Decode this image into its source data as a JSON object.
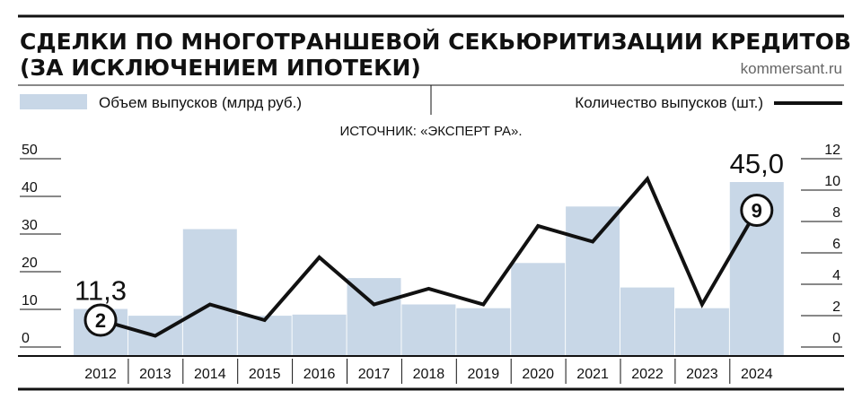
{
  "header": {
    "title_line1": "СДЕЛКИ ПО МНОГОТРАНШЕВОЙ СЕКЬЮРИТИЗАЦИИ КРЕДИТОВ",
    "title_line2": "(ЗА ИСКЛЮЧЕНИЕМ ИПОТЕКИ)",
    "site": "kommersant.ru"
  },
  "source": "ИСТОЧНИК: «ЭКСПЕРТ РА».",
  "colors": {
    "bar": "#c8d7e7",
    "line": "#111111",
    "rule": "#111111"
  },
  "chart_data": {
    "type": "bar",
    "categories": [
      "2012",
      "2013",
      "2014",
      "2015",
      "2016",
      "2017",
      "2018",
      "2019",
      "2020",
      "2021",
      "2022",
      "2023",
      "2024"
    ],
    "series": [
      {
        "name": "Объем выпусков (млрд руб.)",
        "type": "bar",
        "axis": "left",
        "values": [
          11.3,
          9.5,
          32.5,
          9.5,
          9.8,
          19.5,
          12.5,
          11.5,
          23.5,
          38.5,
          17.0,
          11.5,
          45.0
        ]
      },
      {
        "name": "Количество выпусков (шт.)",
        "type": "line",
        "axis": "right",
        "values": [
          2,
          1,
          3,
          2,
          6,
          3,
          4,
          3,
          8,
          7,
          11,
          3,
          9
        ]
      }
    ],
    "y_left": {
      "ticks": [
        0,
        10,
        20,
        30,
        40,
        50
      ],
      "ylim": [
        0,
        50
      ]
    },
    "y_right": {
      "ticks": [
        0,
        2,
        4,
        6,
        8,
        10,
        12
      ],
      "ylim": [
        0,
        12
      ]
    },
    "annotations": [
      {
        "category": "2012",
        "text": "11,3"
      },
      {
        "category": "2024",
        "text": "45,0"
      }
    ],
    "markers": [
      {
        "category": "2012",
        "text": "2"
      },
      {
        "category": "2024",
        "text": "9"
      }
    ],
    "legend": "top"
  }
}
